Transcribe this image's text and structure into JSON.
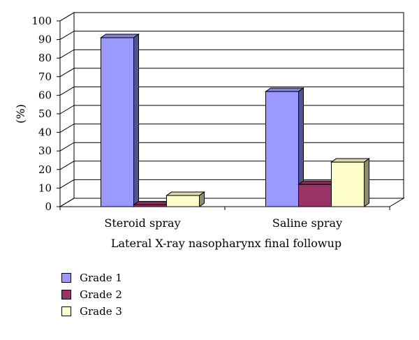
{
  "chart_data": {
    "type": "bar",
    "title": "",
    "xlabel": "Lateral X-ray nasopharynx final followup",
    "ylabel": "(%)",
    "ylim": [
      0,
      100
    ],
    "yticks": [
      0,
      10,
      20,
      30,
      40,
      50,
      60,
      70,
      80,
      90,
      100
    ],
    "categories": [
      "Steroid spray",
      "Saline spray"
    ],
    "series": [
      {
        "name": "Grade 1",
        "values": [
          91,
          62
        ],
        "color": "#9999ff"
      },
      {
        "name": "Grade 2",
        "values": [
          1,
          12
        ],
        "color": "#993366"
      },
      {
        "name": "Grade 3",
        "values": [
          6,
          24
        ],
        "color": "#ffffcc"
      }
    ],
    "grid": true,
    "legend_position": "bottom-left",
    "style": "3d"
  }
}
